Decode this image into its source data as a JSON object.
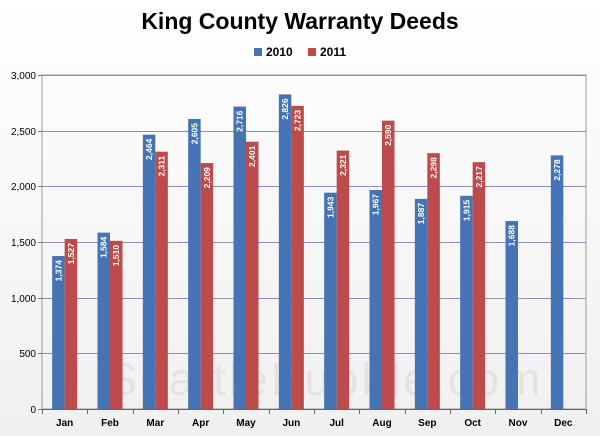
{
  "chart_data": {
    "type": "bar",
    "title": "King County Warranty Deeds",
    "xlabel": "",
    "ylabel": "",
    "ylim": [
      0,
      3000
    ],
    "yticks": [
      "0",
      "500",
      "1,000",
      "1,500",
      "2,000",
      "2,500",
      "3,000"
    ],
    "ytick_values": [
      0,
      500,
      1000,
      1500,
      2000,
      2500,
      3000
    ],
    "categories": [
      "Jan",
      "Feb",
      "Mar",
      "Apr",
      "May",
      "Jun",
      "Jul",
      "Aug",
      "Sep",
      "Oct",
      "Nov",
      "Dec"
    ],
    "series": [
      {
        "name": "2010",
        "color": "#4673b4",
        "values": [
          1374,
          1584,
          2464,
          2605,
          2716,
          2826,
          1943,
          1967,
          1887,
          1915,
          1688,
          2278
        ],
        "labels": [
          "1,374",
          "1,584",
          "2,464",
          "2,605",
          "2,716",
          "2,826",
          "1,943",
          "1,967",
          "1,887",
          "1,915",
          "1,688",
          "2,278"
        ]
      },
      {
        "name": "2011",
        "color": "#bd4b4b",
        "values": [
          1527,
          1510,
          2311,
          2209,
          2401,
          2723,
          2321,
          2590,
          2298,
          2217,
          null,
          null
        ],
        "labels": [
          "1,527",
          "1,510",
          "2,311",
          "2,209",
          "2,401",
          "2,723",
          "2,321",
          "2,590",
          "2,298",
          "2,217",
          null,
          null
        ]
      }
    ],
    "grid": true,
    "legend_position": "top-center",
    "data_labels": "inside-end-rotated"
  },
  "watermark": "SeattleBubble.com"
}
